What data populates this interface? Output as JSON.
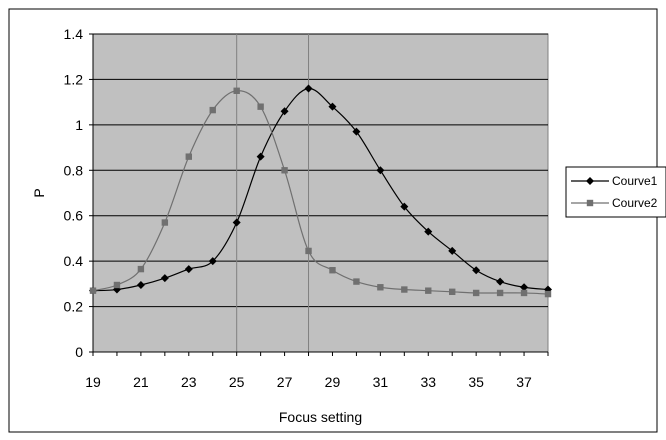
{
  "chart_data": {
    "type": "line",
    "title": "",
    "xlabel": "Focus setting",
    "ylabel": "P",
    "xlim": [
      19,
      38
    ],
    "ylim": [
      0,
      1.4
    ],
    "x_ticks": [
      "19",
      "21",
      "23",
      "25",
      "27",
      "29",
      "31",
      "33",
      "35",
      "37"
    ],
    "y_ticks": [
      "0",
      "0.2",
      "0.4",
      "0.6",
      "0.8",
      "1",
      "1.2",
      "1.4"
    ],
    "grid": true,
    "plot_background": "#c0c0c0",
    "vertical_reference_lines": [
      25,
      28
    ],
    "legend_position": "right",
    "series": [
      {
        "name": "Courve1",
        "color": "#000000",
        "marker": "diamond",
        "x": [
          19,
          20,
          21,
          22,
          23,
          24,
          25,
          26,
          27,
          28,
          29,
          30,
          31,
          32,
          33,
          34,
          35,
          36,
          37,
          38
        ],
        "y": [
          0.27,
          0.275,
          0.295,
          0.325,
          0.365,
          0.4,
          0.57,
          0.86,
          1.06,
          1.16,
          1.08,
          0.97,
          0.8,
          0.64,
          0.53,
          0.445,
          0.36,
          0.31,
          0.285,
          0.275
        ]
      },
      {
        "name": "Courve2",
        "color": "#707070",
        "marker": "square",
        "x": [
          19,
          20,
          21,
          22,
          23,
          24,
          25,
          26,
          27,
          28,
          29,
          30,
          31,
          32,
          33,
          34,
          35,
          36,
          37,
          38
        ],
        "y": [
          0.27,
          0.295,
          0.365,
          0.57,
          0.86,
          1.065,
          1.15,
          1.08,
          0.8,
          0.445,
          0.36,
          0.31,
          0.285,
          0.275,
          0.27,
          0.265,
          0.26,
          0.26,
          0.26,
          0.255
        ]
      }
    ]
  }
}
